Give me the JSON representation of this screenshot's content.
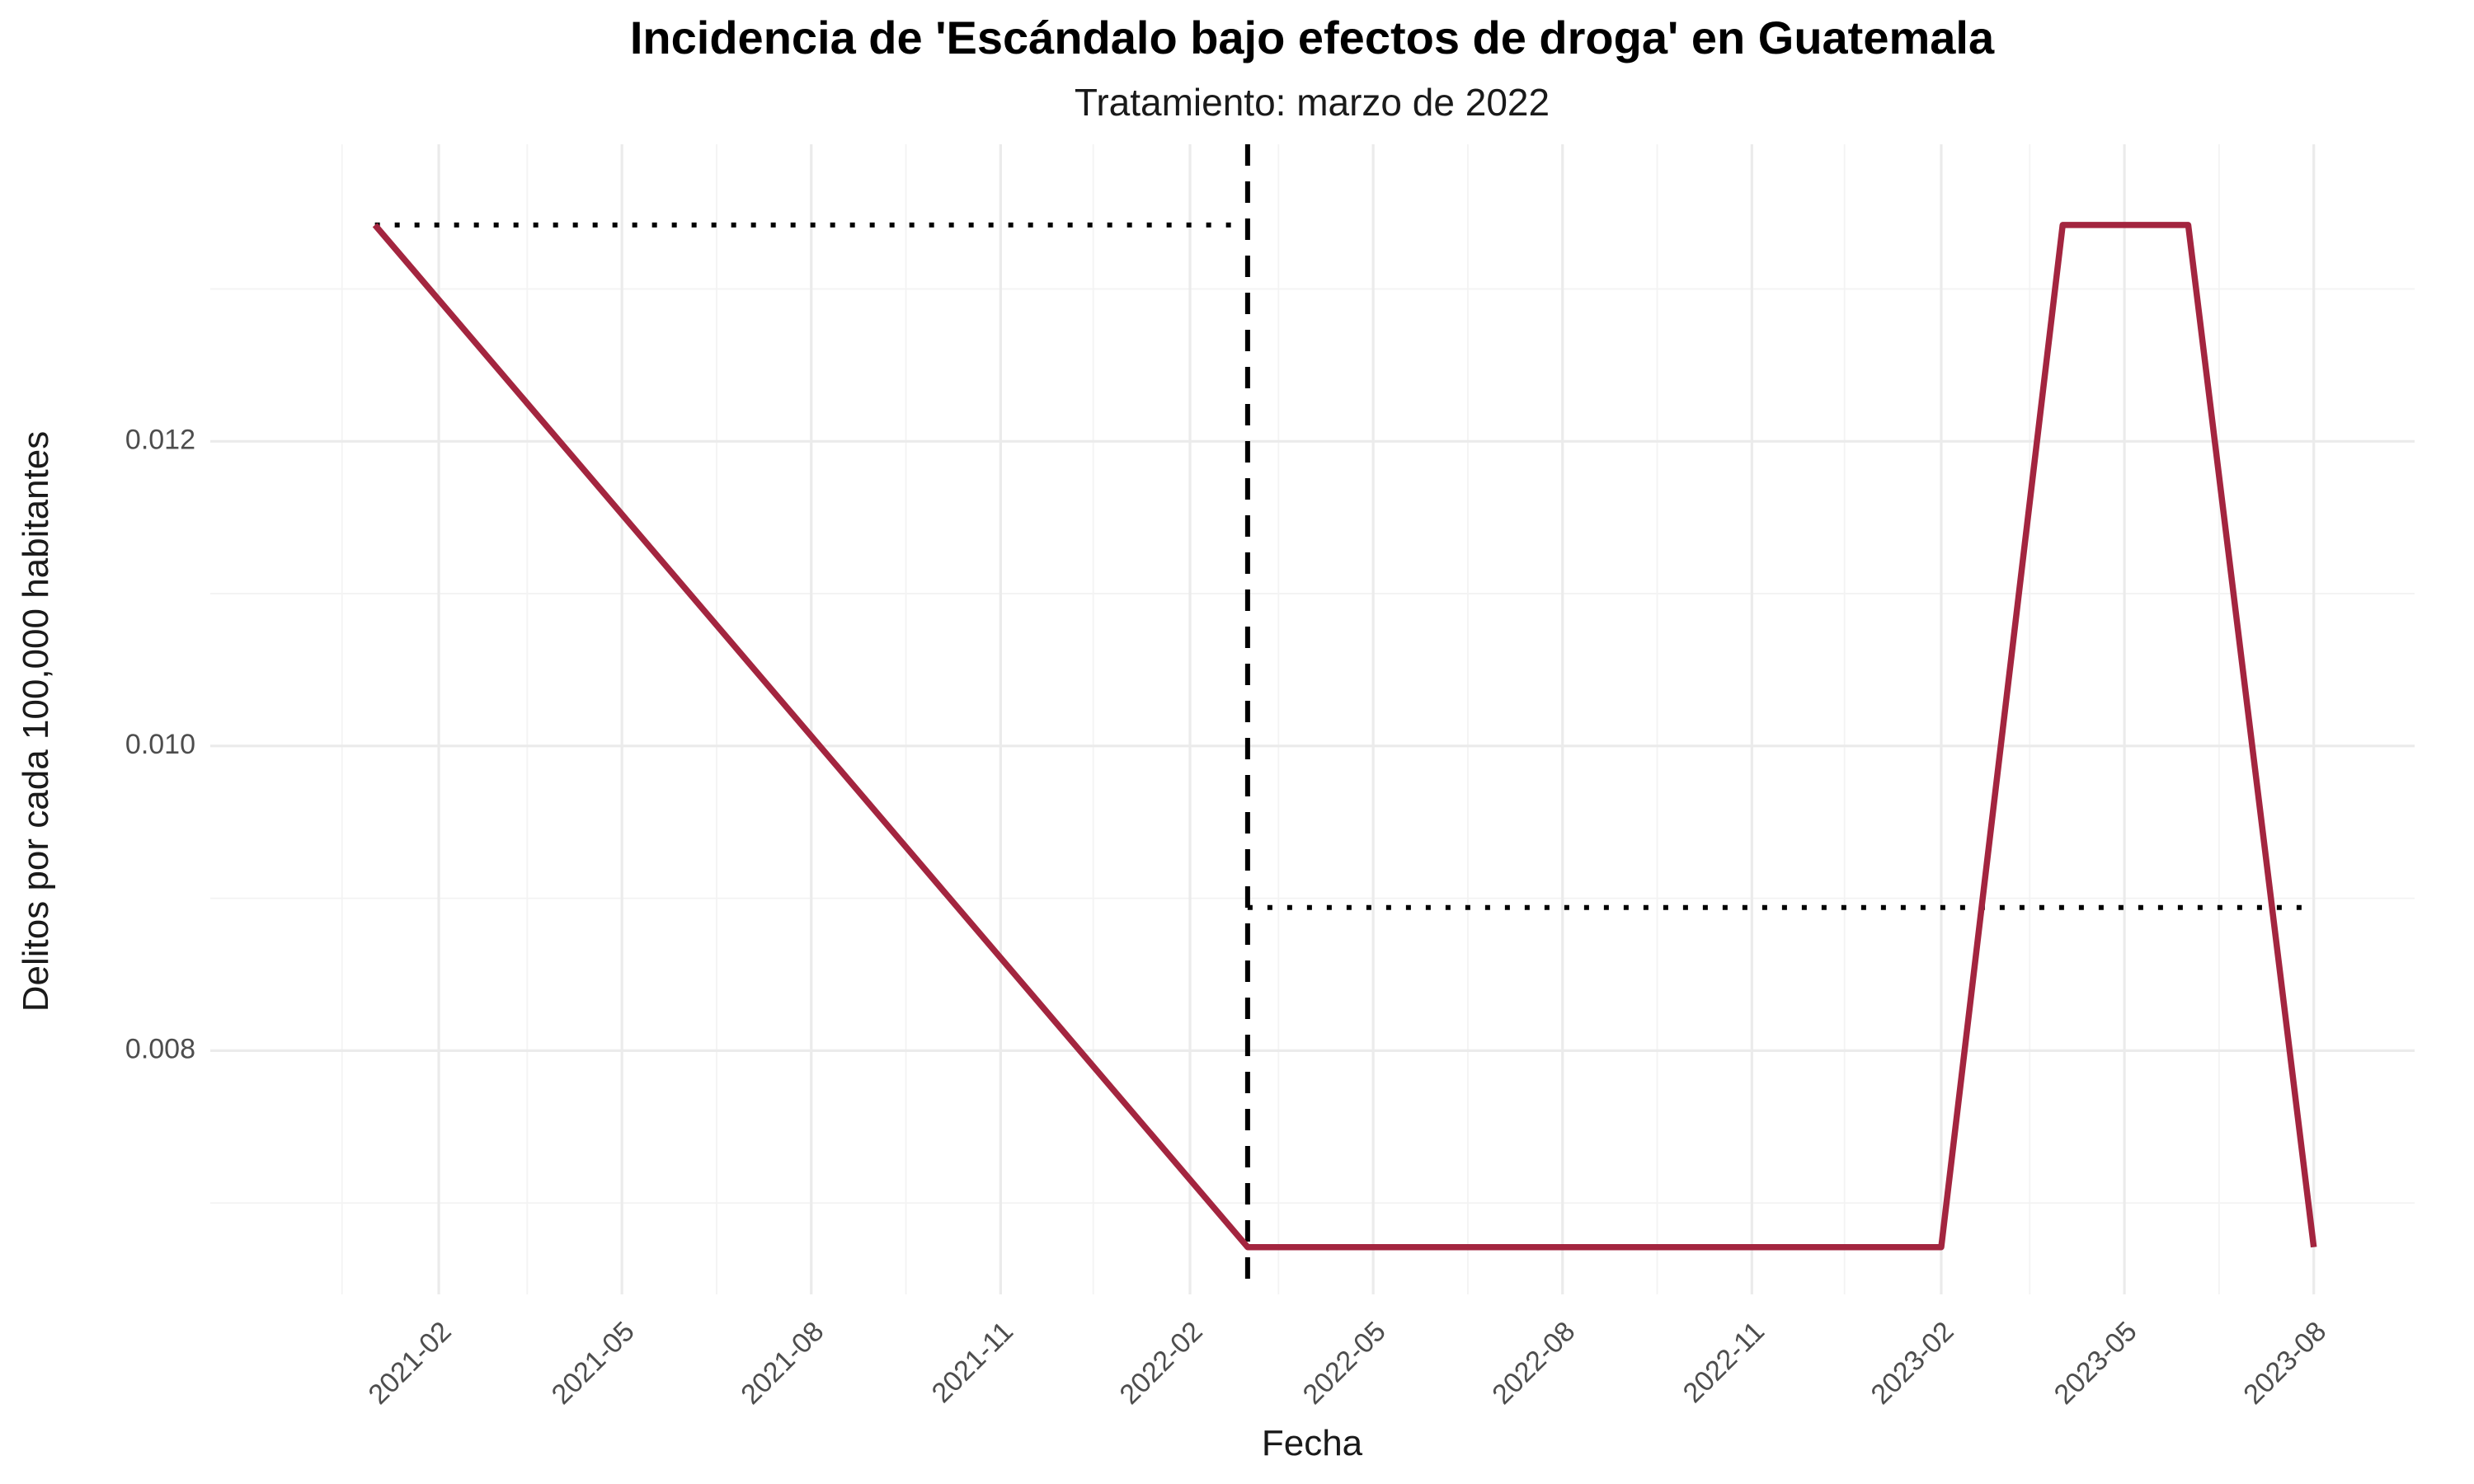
{
  "chart_data": {
    "type": "line",
    "title": "Incidencia de 'Escándalo bajo efectos de droga' en Guatemala",
    "subtitle": "Tratamiento: marzo de 2022",
    "xlabel": "Fecha",
    "ylabel": "Delitos por cada 100,000 habitantes",
    "x_type": "date",
    "xlim": [
      "2020-10-13",
      "2023-09-19"
    ],
    "ylim": [
      0.0064,
      0.01395
    ],
    "x_ticks": [
      "2021-02-01",
      "2021-05-01",
      "2021-08-01",
      "2021-11-01",
      "2022-02-01",
      "2022-05-01",
      "2022-08-01",
      "2022-11-01",
      "2023-02-01",
      "2023-05-01",
      "2023-08-01"
    ],
    "x_tick_labels": [
      "2021-02",
      "2021-05",
      "2021-08",
      "2021-11",
      "2022-02",
      "2022-05",
      "2022-08",
      "2022-11",
      "2023-02",
      "2023-05",
      "2023-08"
    ],
    "x_minor_ticks": [
      "2020-12-16",
      "2021-03-16",
      "2021-06-16",
      "2021-09-16",
      "2021-12-16",
      "2022-03-16",
      "2022-06-16",
      "2022-09-16",
      "2022-12-16",
      "2023-03-16",
      "2023-06-16"
    ],
    "y_ticks": [
      0.008,
      0.01,
      0.012
    ],
    "y_tick_labels": [
      "0.008",
      "0.010",
      "0.012"
    ],
    "y_minor_ticks": [
      0.007,
      0.009,
      0.011,
      0.013
    ],
    "grid": true,
    "series": [
      {
        "color": "#A3253F",
        "x": [
          "2021-01-01",
          "2022-03-01",
          "2023-02-01",
          "2023-04-01",
          "2023-06-01",
          "2023-08-01"
        ],
        "values": [
          0.01342,
          0.00671,
          0.00671,
          0.01342,
          0.01342,
          0.00671
        ]
      }
    ],
    "reference_lines": [
      {
        "kind": "vertical",
        "style": "dashed",
        "x": "2022-03-01"
      },
      {
        "kind": "horizontal",
        "style": "dotted",
        "x_start": "2021-01-01",
        "x_end": "2022-03-01",
        "y": 0.01342
      },
      {
        "kind": "horizontal",
        "style": "dotted",
        "x_start": "2022-03-01",
        "x_end": "2023-08-01",
        "y": 0.00894
      }
    ]
  }
}
